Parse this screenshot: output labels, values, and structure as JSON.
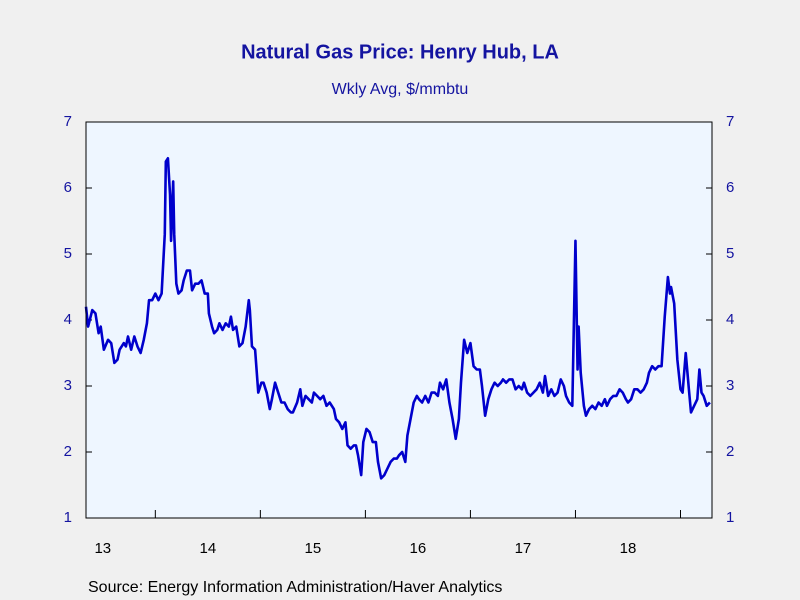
{
  "chart_data": {
    "type": "line",
    "title": "Natural Gas Price: Henry Hub, LA",
    "subtitle": "Wkly Avg, $/mmbtu",
    "source": "Source:  Energy Information Administration/Haver Analytics",
    "xlim": [
      2013.34,
      2019.3
    ],
    "xticks": [
      {
        "value": 2013.5,
        "label": "13"
      },
      {
        "value": 2014.5,
        "label": "14"
      },
      {
        "value": 2015.5,
        "label": "15"
      },
      {
        "value": 2016.5,
        "label": "16"
      },
      {
        "value": 2017.5,
        "label": "17"
      },
      {
        "value": 2018.5,
        "label": "18"
      }
    ],
    "xtick_marks": [
      2014,
      2015,
      2016,
      2017,
      2018,
      2019
    ],
    "ylim": [
      1,
      7
    ],
    "yticks": [
      1,
      2,
      3,
      4,
      5,
      6,
      7
    ],
    "y2lim": [
      1,
      7
    ],
    "y2ticks": [
      1,
      2,
      3,
      4,
      5,
      6,
      7
    ],
    "x": [
      2013.34,
      2013.36,
      2013.4,
      2013.43,
      2013.46,
      2013.48,
      2013.51,
      2013.55,
      2013.58,
      2013.61,
      2013.64,
      2013.66,
      2013.7,
      2013.72,
      2013.74,
      2013.77,
      2013.8,
      2013.83,
      2013.86,
      2013.89,
      2013.92,
      2013.94,
      2013.97,
      2014.0,
      2014.03,
      2014.06,
      2014.08,
      2014.09,
      2014.1,
      2014.12,
      2014.14,
      2014.15,
      2014.17,
      2014.18,
      2014.2,
      2014.22,
      2014.25,
      2014.27,
      2014.3,
      2014.33,
      2014.35,
      2014.38,
      2014.41,
      2014.44,
      2014.47,
      2014.5,
      2014.51,
      2014.54,
      2014.56,
      2014.59,
      2014.61,
      2014.64,
      2014.67,
      2014.7,
      2014.72,
      2014.74,
      2014.77,
      2014.8,
      2014.83,
      2014.86,
      2014.89,
      2014.9,
      2014.92,
      2014.95,
      2014.98,
      2015.01,
      2015.03,
      2015.06,
      2015.09,
      2015.11,
      2015.14,
      2015.17,
      2015.2,
      2015.23,
      2015.26,
      2015.29,
      2015.31,
      2015.35,
      2015.38,
      2015.4,
      2015.43,
      2015.46,
      2015.49,
      2015.51,
      2015.54,
      2015.57,
      2015.6,
      2015.63,
      2015.66,
      2015.7,
      2015.72,
      2015.75,
      2015.78,
      2015.81,
      2015.83,
      2015.86,
      2015.89,
      2015.91,
      2015.93,
      2015.96,
      2015.98,
      2016.01,
      2016.04,
      2016.07,
      2016.1,
      2016.12,
      2016.15,
      2016.18,
      2016.21,
      2016.24,
      2016.27,
      2016.3,
      2016.32,
      2016.35,
      2016.38,
      2016.4,
      2016.43,
      2016.46,
      2016.49,
      2016.51,
      2016.54,
      2016.57,
      2016.6,
      2016.63,
      2016.66,
      2016.69,
      2016.71,
      2016.74,
      2016.77,
      2016.8,
      2016.83,
      2016.86,
      2016.89,
      2016.91,
      2016.94,
      2016.97,
      2017.0,
      2017.03,
      2017.06,
      2017.09,
      2017.11,
      2017.14,
      2017.17,
      2017.2,
      2017.23,
      2017.26,
      2017.29,
      2017.31,
      2017.34,
      2017.37,
      2017.4,
      2017.43,
      2017.46,
      2017.49,
      2017.51,
      2017.54,
      2017.57,
      2017.6,
      2017.63,
      2017.66,
      2017.69,
      2017.71,
      2017.74,
      2017.77,
      2017.8,
      2017.83,
      2017.86,
      2017.89,
      2017.91,
      2017.94,
      2017.97,
      2018.0,
      2018.02,
      2018.03,
      2018.05,
      2018.08,
      2018.1,
      2018.13,
      2018.16,
      2018.19,
      2018.22,
      2018.25,
      2018.28,
      2018.3,
      2018.33,
      2018.36,
      2018.39,
      2018.42,
      2018.45,
      2018.48,
      2018.5,
      2018.53,
      2018.56,
      2018.59,
      2018.62,
      2018.65,
      2018.68,
      2018.7,
      2018.73,
      2018.76,
      2018.79,
      2018.82,
      2018.85,
      2018.88,
      2018.9,
      2018.91,
      2018.94,
      2018.97,
      2019.0,
      2019.02,
      2019.05,
      2019.08,
      2019.1,
      2019.13,
      2019.16,
      2019.18,
      2019.2,
      2019.22,
      2019.25,
      2019.28
    ],
    "series": [
      {
        "name": "Henry Hub",
        "color": "#0000cc",
        "values": [
          4.2,
          3.9,
          4.15,
          4.1,
          3.8,
          3.9,
          3.55,
          3.7,
          3.65,
          3.35,
          3.4,
          3.55,
          3.65,
          3.6,
          3.75,
          3.55,
          3.75,
          3.6,
          3.5,
          3.7,
          3.95,
          4.3,
          4.3,
          4.4,
          4.3,
          4.4,
          5.0,
          5.3,
          6.4,
          6.45,
          5.9,
          5.2,
          6.1,
          5.3,
          4.55,
          4.4,
          4.45,
          4.6,
          4.75,
          4.75,
          4.45,
          4.55,
          4.55,
          4.6,
          4.4,
          4.4,
          4.1,
          3.9,
          3.8,
          3.85,
          3.95,
          3.85,
          3.95,
          3.9,
          4.05,
          3.85,
          3.9,
          3.6,
          3.65,
          3.9,
          4.3,
          4.15,
          3.6,
          3.55,
          2.9,
          3.05,
          3.05,
          2.9,
          2.65,
          2.8,
          3.05,
          2.9,
          2.75,
          2.75,
          2.65,
          2.6,
          2.6,
          2.75,
          2.95,
          2.7,
          2.85,
          2.8,
          2.75,
          2.9,
          2.85,
          2.8,
          2.85,
          2.7,
          2.75,
          2.65,
          2.5,
          2.45,
          2.35,
          2.45,
          2.1,
          2.05,
          2.1,
          2.1,
          1.95,
          1.65,
          2.15,
          2.35,
          2.3,
          2.15,
          2.15,
          1.85,
          1.6,
          1.65,
          1.75,
          1.85,
          1.9,
          1.9,
          1.95,
          2.0,
          1.85,
          2.25,
          2.5,
          2.75,
          2.85,
          2.8,
          2.75,
          2.85,
          2.75,
          2.9,
          2.9,
          2.85,
          3.05,
          2.95,
          3.1,
          2.75,
          2.5,
          2.2,
          2.5,
          3.05,
          3.7,
          3.5,
          3.65,
          3.3,
          3.25,
          3.25,
          3.0,
          2.55,
          2.8,
          2.95,
          3.05,
          3.0,
          3.05,
          3.1,
          3.05,
          3.1,
          3.1,
          2.95,
          3.0,
          2.95,
          3.05,
          2.9,
          2.85,
          2.9,
          2.95,
          3.05,
          2.9,
          3.15,
          2.85,
          2.95,
          2.85,
          2.9,
          3.1,
          3.0,
          2.85,
          2.75,
          2.7,
          5.2,
          3.25,
          3.9,
          3.2,
          2.7,
          2.55,
          2.65,
          2.7,
          2.65,
          2.75,
          2.7,
          2.8,
          2.7,
          2.8,
          2.85,
          2.85,
          2.95,
          2.9,
          2.8,
          2.75,
          2.8,
          2.95,
          2.95,
          2.9,
          2.95,
          3.05,
          3.2,
          3.3,
          3.25,
          3.3,
          3.3,
          4.05,
          4.65,
          4.4,
          4.5,
          4.25,
          3.4,
          2.95,
          2.9,
          3.5,
          2.95,
          2.6,
          2.7,
          2.8,
          3.25,
          2.9,
          2.85,
          2.7,
          2.75
        ]
      }
    ]
  }
}
